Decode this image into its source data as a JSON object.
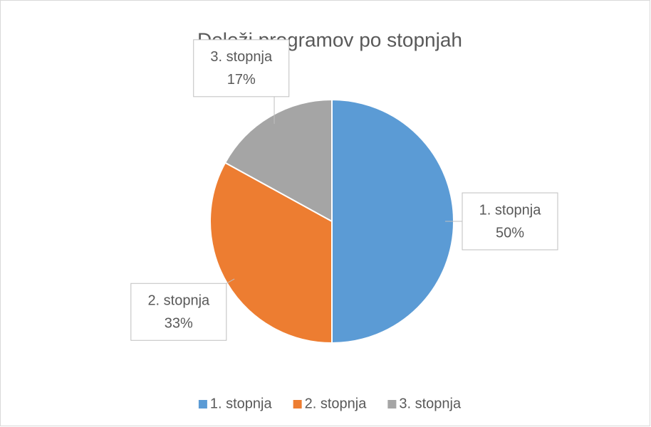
{
  "chart_data": {
    "type": "pie",
    "title": "Deleži programov po stopnjah",
    "categories": [
      "1. stopnja",
      "2. stopnja",
      "3. stopnja"
    ],
    "values": [
      50,
      33,
      17
    ],
    "value_labels": [
      "50%",
      "33%",
      "17%"
    ],
    "colors": [
      "#5b9bd5",
      "#ed7d31",
      "#a5a5a5"
    ],
    "legend": "bottom"
  }
}
